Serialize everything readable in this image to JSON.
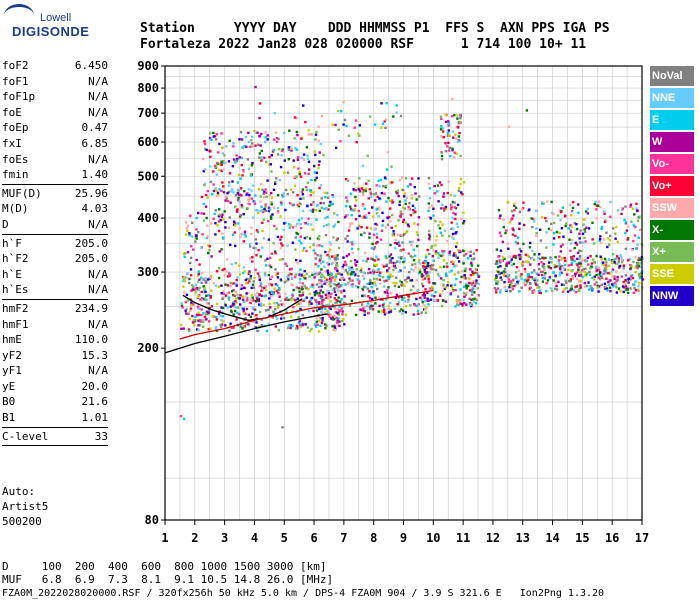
{
  "logo": {
    "brand": "Lowell",
    "product": "DIGISONDE"
  },
  "header": {
    "labels_line": "Station     YYYY DAY    DDD HHMMSS P1  FFS S  AXN PPS IGA PS",
    "values_line": "Fortaleza 2022 Jan28 028 020000 RSF      1 714 100 10+ 11"
  },
  "params": [
    {
      "label": "foF2",
      "value": "6.450"
    },
    {
      "label": "foF1",
      "value": "N/A"
    },
    {
      "label": "foF1p",
      "value": "N/A"
    },
    {
      "label": "foE",
      "value": "N/A"
    },
    {
      "label": "foEp",
      "value": "0.47"
    },
    {
      "label": "fxI",
      "value": "6.85"
    },
    {
      "label": "foEs",
      "value": "N/A"
    },
    {
      "label": "fmin",
      "value": "1.40"
    },
    {
      "divider": true
    },
    {
      "label": "MUF(D)",
      "value": "25.96"
    },
    {
      "label": "M(D)",
      "value": "4.03"
    },
    {
      "label": "D",
      "value": "N/A"
    },
    {
      "divider": true
    },
    {
      "label": "h`F",
      "value": "205.0"
    },
    {
      "label": "h`F2",
      "value": "205.0"
    },
    {
      "label": "h`E",
      "value": "N/A"
    },
    {
      "label": "h`Es",
      "value": "N/A"
    },
    {
      "divider": true
    },
    {
      "label": "hmF2",
      "value": "234.9"
    },
    {
      "label": "hmF1",
      "value": "N/A"
    },
    {
      "label": "hmE",
      "value": "110.0"
    },
    {
      "label": "yF2",
      "value": "15.3"
    },
    {
      "label": "yF1",
      "value": "N/A"
    },
    {
      "label": "yE",
      "value": "20.0"
    },
    {
      "label": "B0",
      "value": "21.6"
    },
    {
      "label": "B1",
      "value": "1.01"
    },
    {
      "divider": true
    },
    {
      "label": "C-level",
      "value": "33"
    },
    {
      "divider": true
    }
  ],
  "autoscale": {
    "line1": "Auto:",
    "line2": "Artist5",
    "line3": "500200"
  },
  "legend": [
    {
      "label": "NoVal",
      "color": "#808080"
    },
    {
      "label": "NNE",
      "color": "#66ccff"
    },
    {
      "label": "E",
      "color": "#00ccee"
    },
    {
      "label": "W",
      "color": "#aa0099"
    },
    {
      "label": "Vo-",
      "color": "#ff3399"
    },
    {
      "label": "Vo+",
      "color": "#ff0033"
    },
    {
      "label": "SSW",
      "color": "#ffaaaa"
    },
    {
      "label": "X-",
      "color": "#007700"
    },
    {
      "label": "X+",
      "color": "#77bb55"
    },
    {
      "label": "SSE",
      "color": "#cccc00"
    },
    {
      "label": "NNW",
      "color": "#2200cc"
    }
  ],
  "muf_table": {
    "d_row": "D     100  200  400  600  800 1000 1500 3000 [km]",
    "muf_row": "MUF   6.8  6.9  7.3  8.1  9.1 10.5 14.8 26.0 [MHz]"
  },
  "footer": "FZA0M_2022028020000.RSF / 320fx256h 50 kHz 5.0 km / DPS-4 FZA0M 904 / 3.9 S 321.6 E   Ion2Png 1.3.20",
  "chart_data": {
    "type": "scatter",
    "title": "",
    "xlabel": "",
    "ylabel": "",
    "xlim": [
      1,
      17
    ],
    "ylim": [
      80,
      900
    ],
    "xscale": "linear",
    "yscale": "log",
    "x_ticks": [
      1,
      2,
      3,
      4,
      5,
      6,
      7,
      8,
      9,
      10,
      11,
      12,
      13,
      14,
      15,
      16,
      17
    ],
    "y_ticks": [
      80,
      200,
      300,
      400,
      500,
      600,
      700,
      800,
      900
    ],
    "grid": true,
    "legend_position": "right",
    "trace_lines": [
      {
        "color": "#000000",
        "points": [
          [
            1.0,
            195
          ],
          [
            2.0,
            205
          ],
          [
            3.0,
            213
          ],
          [
            4.0,
            222
          ],
          [
            5.0,
            230
          ],
          [
            6.0,
            237
          ],
          [
            6.45,
            240
          ]
        ]
      },
      {
        "color": "#000000",
        "points": [
          [
            1.6,
            265
          ],
          [
            2.0,
            255
          ],
          [
            2.6,
            245
          ],
          [
            3.2,
            238
          ],
          [
            3.8,
            232
          ],
          [
            4.4,
            235
          ],
          [
            5.0,
            245
          ],
          [
            5.6,
            260
          ]
        ]
      },
      {
        "color": "#cc0000",
        "points": [
          [
            1.5,
            210
          ],
          [
            2.0,
            215
          ],
          [
            3.0,
            222
          ],
          [
            4.0,
            232
          ],
          [
            5.0,
            240
          ],
          [
            6.0,
            248
          ],
          [
            7.0,
            252
          ],
          [
            8.0,
            258
          ],
          [
            9.0,
            265
          ],
          [
            10.0,
            272
          ]
        ]
      }
    ],
    "echo_regions": [
      {
        "xr": [
          1.5,
          7.0
        ],
        "yr": [
          220,
          300
        ],
        "n": 650
      },
      {
        "xr": [
          1.6,
          6.8
        ],
        "yr": [
          300,
          420
        ],
        "n": 260
      },
      {
        "xr": [
          2.2,
          6.6
        ],
        "yr": [
          420,
          470
        ],
        "n": 140
      },
      {
        "xr": [
          2.2,
          6.2
        ],
        "yr": [
          470,
          640
        ],
        "n": 200
      },
      {
        "xr": [
          6.0,
          9.8
        ],
        "yr": [
          240,
          330
        ],
        "n": 420
      },
      {
        "xr": [
          7.0,
          9.5
        ],
        "yr": [
          330,
          500
        ],
        "n": 230
      },
      {
        "xr": [
          9.6,
          11.5
        ],
        "yr": [
          250,
          340
        ],
        "n": 230
      },
      {
        "xr": [
          9.8,
          11.0
        ],
        "yr": [
          340,
          500
        ],
        "n": 90
      },
      {
        "xr": [
          10.2,
          10.9
        ],
        "yr": [
          550,
          700
        ],
        "n": 60
      },
      {
        "xr": [
          12.0,
          17.0
        ],
        "yr": [
          270,
          330
        ],
        "n": 520
      },
      {
        "xr": [
          12.0,
          17.0
        ],
        "yr": [
          330,
          440
        ],
        "n": 220
      },
      {
        "xr": [
          4.0,
          9.0
        ],
        "yr": [
          520,
          760
        ],
        "n": 60
      }
    ],
    "outlier_points": [
      [
        1.5,
        140
      ],
      [
        1.6,
        138
      ],
      [
        4.9,
        132
      ],
      [
        4.0,
        810
      ],
      [
        10.6,
        760
      ],
      [
        13.1,
        715
      ],
      [
        12.5,
        655
      ]
    ]
  }
}
